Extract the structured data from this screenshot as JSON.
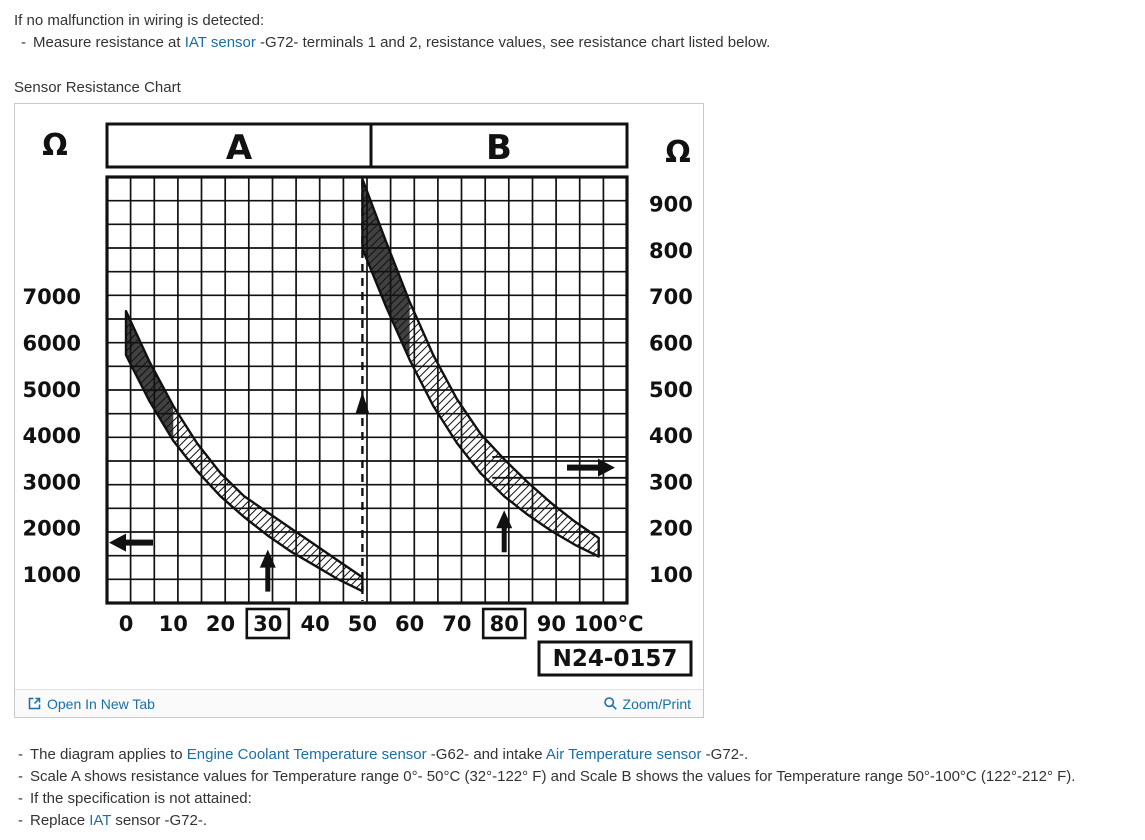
{
  "page": {
    "intro_line": "If no malfunction in wiring is detected:",
    "measure_bullet": {
      "dash": "-",
      "pre": "Measure resistance at ",
      "link": "IAT sensor",
      "post": " -G72- terminals 1 and 2, resistance values, see resistance chart listed below."
    },
    "chart_caption": "Sensor Resistance Chart"
  },
  "panel": {
    "footer": {
      "open_label": "Open In New Tab",
      "zoom_label": "Zoom/Print"
    }
  },
  "chart_data": {
    "type": "line",
    "title": "Sensor Resistance Chart",
    "figure_number": "N24-0157",
    "grid": true,
    "x_axis": {
      "ticks": [
        0,
        10,
        20,
        30,
        40,
        50,
        60,
        70,
        80,
        90,
        100
      ],
      "boxed_ticks": [
        30,
        80
      ],
      "unit": "°C",
      "range": [
        0,
        100
      ]
    },
    "left_axis": {
      "unit": "Ω",
      "ticks": [
        7000,
        6000,
        5000,
        4000,
        3000,
        2000,
        1000
      ],
      "applies_to": "A"
    },
    "right_axis": {
      "unit": "Ω",
      "ticks": [
        900,
        800,
        700,
        600,
        500,
        400,
        300,
        200,
        100
      ],
      "applies_to": "B"
    },
    "scales": [
      {
        "label": "A",
        "temp_range_c": [
          0,
          50
        ]
      },
      {
        "label": "B",
        "temp_range_c": [
          50,
          100
        ]
      }
    ],
    "series": [
      {
        "name": "A",
        "axis": "left",
        "x": [
          0,
          5,
          10,
          15,
          20,
          25,
          30,
          35,
          40,
          45,
          50
        ],
        "upper": [
          6700,
          5600,
          4650,
          3850,
          3200,
          2700,
          2350,
          2000,
          1650,
          1300,
          950
        ],
        "lower": [
          5750,
          4750,
          3900,
          3250,
          2700,
          2250,
          1850,
          1500,
          1200,
          900,
          650
        ]
      },
      {
        "name": "B",
        "axis": "right",
        "x": [
          50,
          55,
          60,
          65,
          70,
          75,
          80,
          85,
          90,
          95,
          100
        ],
        "upper": [
          955,
          820,
          690,
          575,
          480,
          405,
          350,
          300,
          255,
          215,
          180
        ],
        "lower": [
          805,
          680,
          565,
          465,
          385,
          320,
          270,
          230,
          195,
          165,
          140
        ]
      }
    ],
    "annotations": {
      "dashed_vertical_c": 50,
      "up_arrow_c": [
        30,
        80
      ],
      "left_arrow_left_ohm": 1700,
      "right_arrow_right_ohm": 332,
      "right_guide_lines_right_ohm": [
        355,
        310
      ]
    }
  },
  "notes": {
    "dash": "-",
    "n1": {
      "pre": "The diagram applies to ",
      "link1": "Engine Coolant Temperature sensor",
      "mid": " -G62- and intake ",
      "link2": "Air Temperature sensor",
      "post": " -G72-."
    },
    "n2": "Scale A shows resistance values for Temperature range 0°- 50°C (32°-122° F) and Scale B shows the values for Temperature range 50°-100°C (122°-212° F).",
    "n3": "If the specification is not attained:",
    "n4": {
      "pre": "Replace ",
      "link": "IAT",
      "post": " sensor -G72-."
    }
  },
  "colors": {
    "link": "#1b6fa5",
    "text": "#333333",
    "panel_border": "#c9c9c9",
    "chart_ink": "#111111"
  }
}
